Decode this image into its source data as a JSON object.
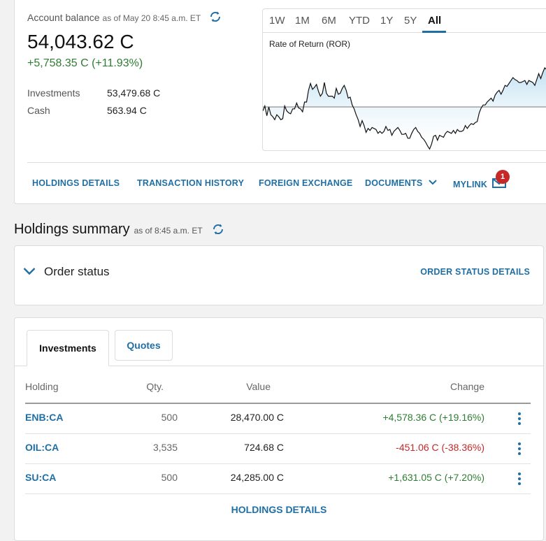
{
  "account": {
    "label": "Account balance",
    "as_of": "as of May 20 8:45 a.m. ET",
    "balance": "54,043.62 C",
    "change": "+5,758.35 C (+11.93%)",
    "investments_label": "Investments",
    "investments_value": "53,479.68 C",
    "cash_label": "Cash",
    "cash_value": "563.94 C"
  },
  "chart": {
    "range_tabs": [
      "1W",
      "1M",
      "6M",
      "YTD",
      "1Y",
      "5Y",
      "All"
    ],
    "active_range": "All",
    "title": "Rate of Return (ROR)"
  },
  "chart_data": {
    "type": "area",
    "title": "Rate of Return (ROR)",
    "xlabel": "",
    "ylabel": "",
    "grid": false,
    "ylim": [
      0,
      100
    ],
    "baseline": 50,
    "values": [
      46,
      51,
      41,
      50,
      42,
      40,
      37,
      42,
      40,
      37,
      38,
      51,
      46,
      44,
      43,
      48,
      48,
      54,
      49,
      48,
      45,
      55,
      55,
      67,
      74,
      68,
      70,
      73,
      66,
      61,
      64,
      75,
      64,
      61,
      61,
      61,
      59,
      69,
      63,
      64,
      69,
      72,
      67,
      59,
      60,
      52,
      48,
      42,
      37,
      30,
      36,
      31,
      24,
      28,
      26,
      29,
      28,
      27,
      23,
      25,
      23,
      25,
      30,
      26,
      27,
      21,
      25,
      27,
      29,
      26,
      22,
      22,
      23,
      18,
      18,
      23,
      27,
      29,
      25,
      23,
      19,
      17,
      14,
      10,
      7,
      12,
      20,
      21,
      16,
      21,
      20,
      19,
      23,
      25,
      24,
      23,
      26,
      23,
      27,
      25,
      25,
      26,
      31,
      28,
      31,
      33,
      32,
      34,
      35,
      44,
      49,
      52,
      52,
      55,
      57,
      59,
      56,
      62,
      65,
      67,
      63,
      67,
      72,
      71,
      74,
      77,
      80,
      78,
      77,
      75,
      75,
      76,
      77,
      73,
      77,
      76,
      75,
      72,
      78,
      84,
      79,
      85,
      90,
      88
    ]
  },
  "nav": {
    "holdings_details": "HOLDINGS DETAILS",
    "transaction_history": "TRANSACTION HISTORY",
    "foreign_exchange": "FOREIGN EXCHANGE",
    "documents": "DOCUMENTS",
    "mylink": "MYLINK",
    "mylink_badge": "1"
  },
  "holdings_summary": {
    "title": "Holdings summary",
    "as_of": "as of 8:45 a.m. ET"
  },
  "order_status": {
    "label": "Order status",
    "details_link": "ORDER STATUS DETAILS"
  },
  "holdings": {
    "tabs": [
      "Investments",
      "Quotes"
    ],
    "columns": [
      "Holding",
      "Qty.",
      "Value",
      "Change"
    ],
    "rows": [
      {
        "symbol": "ENB:CA",
        "qty": "500",
        "value": "28,470.00 C",
        "change": "+4,578.36 C  (+19.16%)",
        "direction": "up"
      },
      {
        "symbol": "OIL:CA",
        "qty": "3,535",
        "value": "724.68 C",
        "change": "-451.06 C  (-38.36%)",
        "direction": "down"
      },
      {
        "symbol": "SU:CA",
        "qty": "500",
        "value": "24,285.00 C",
        "change": "+1,631.05 C  (+7.20%)",
        "direction": "up"
      }
    ],
    "footer_link": "HOLDINGS DETAILS"
  },
  "colors": {
    "accent": "#1f6fa5",
    "positive": "#2e7d32",
    "negative": "#c62828",
    "chart_fill": "#cfe6f4",
    "chart_line": "#111111"
  }
}
